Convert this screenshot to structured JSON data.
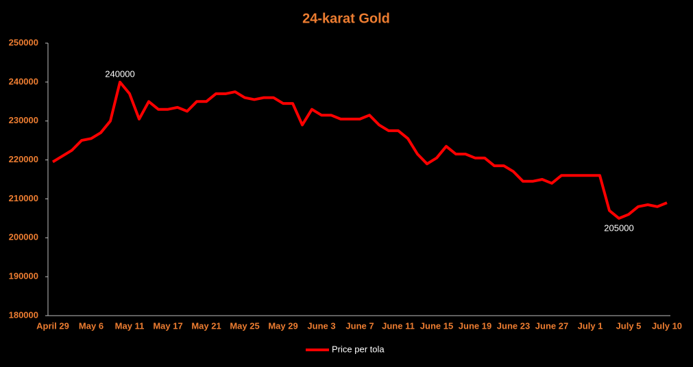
{
  "chart_data": {
    "type": "line",
    "title": "24-karat Gold",
    "categories": [
      "April 29",
      null,
      null,
      null,
      "May 6",
      null,
      null,
      null,
      "May 11",
      null,
      null,
      null,
      "May 17",
      null,
      null,
      null,
      "May 21",
      null,
      null,
      null,
      "May 25",
      null,
      null,
      null,
      "May 29",
      null,
      null,
      null,
      "June 3",
      null,
      null,
      null,
      "June 7",
      null,
      null,
      null,
      "June 11",
      null,
      null,
      null,
      "June 15",
      null,
      null,
      null,
      "June 19",
      null,
      null,
      null,
      "June 23",
      null,
      null,
      null,
      "June 27",
      null,
      null,
      null,
      "July 1",
      null,
      null,
      null,
      "July 5",
      null,
      null,
      null,
      "July 10"
    ],
    "series": [
      {
        "name": "Price per tola",
        "color": "#ff0000",
        "values": [
          219500,
          221000,
          222500,
          225000,
          225500,
          227000,
          230000,
          240000,
          237000,
          230500,
          235000,
          233000,
          233000,
          233500,
          232500,
          235000,
          235000,
          237000,
          237000,
          237500,
          236000,
          235500,
          236000,
          236000,
          234500,
          234500,
          229000,
          233000,
          231500,
          231500,
          230500,
          230500,
          230500,
          231500,
          229000,
          227500,
          227500,
          225500,
          221500,
          219000,
          220500,
          223500,
          221500,
          221500,
          220500,
          220500,
          218500,
          218500,
          217000,
          214500,
          214500,
          215000,
          214000,
          216000,
          216000,
          216000,
          216000,
          216000,
          207000,
          205000,
          206000,
          208000,
          208500,
          208000,
          209000
        ],
        "value_labels": [
          null,
          null,
          null,
          null,
          null,
          null,
          null,
          "240000",
          null,
          null,
          null,
          null,
          null,
          null,
          null,
          null,
          null,
          null,
          null,
          null,
          null,
          null,
          null,
          null,
          null,
          null,
          null,
          null,
          null,
          null,
          null,
          null,
          null,
          null,
          null,
          null,
          null,
          null,
          null,
          null,
          null,
          null,
          null,
          null,
          null,
          null,
          null,
          null,
          null,
          null,
          null,
          null,
          null,
          null,
          null,
          null,
          null,
          null,
          null,
          "205000",
          null,
          null,
          null,
          null,
          null
        ]
      }
    ],
    "ylim": [
      180000,
      250000
    ],
    "yticks": [
      180000,
      190000,
      200000,
      210000,
      220000,
      230000,
      240000,
      250000
    ],
    "legend": "bottom"
  }
}
